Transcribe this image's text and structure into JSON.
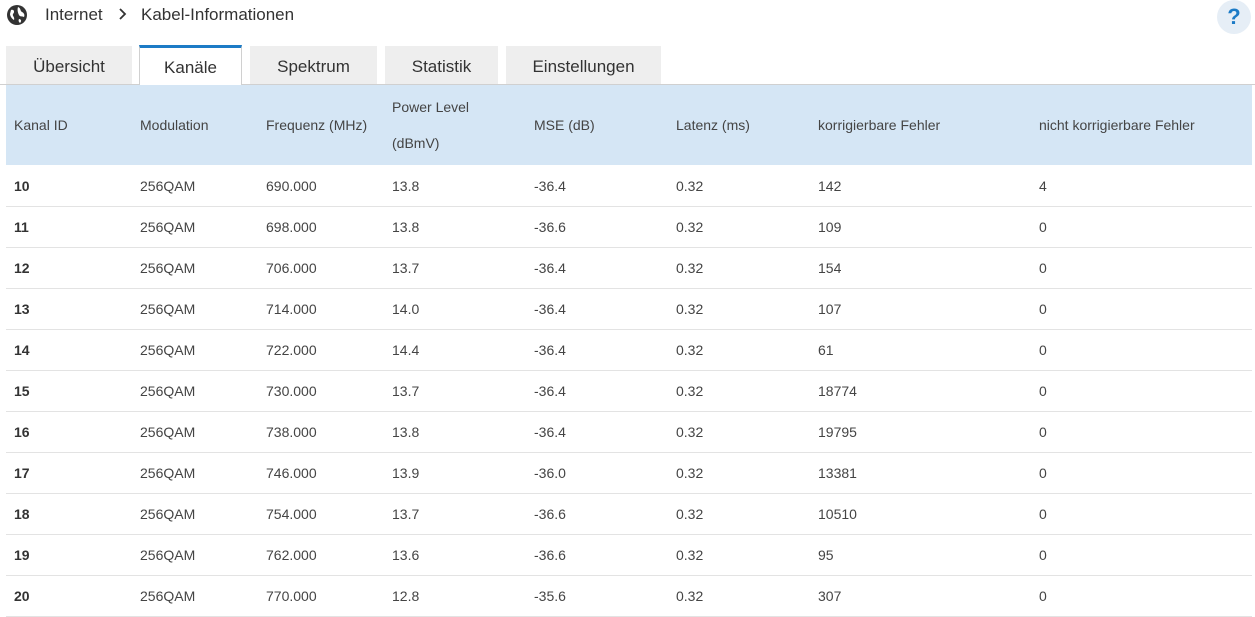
{
  "breadcrumb": {
    "root": "Internet",
    "current": "Kabel-Informationen"
  },
  "help_label": "?",
  "tabs": [
    {
      "label": "Übersicht",
      "active": false
    },
    {
      "label": "Kanäle",
      "active": true
    },
    {
      "label": "Spektrum",
      "active": false
    },
    {
      "label": "Statistik",
      "active": false
    },
    {
      "label": "Einstellungen",
      "active": false
    }
  ],
  "table": {
    "headers": {
      "kanal_id": "Kanal ID",
      "modulation": "Modulation",
      "frequenz": "Frequenz (MHz)",
      "power_level_1": "Power Level",
      "power_level_2": "(dBmV)",
      "mse": "MSE (dB)",
      "latenz": "Latenz (ms)",
      "korr": "korrigierbare Fehler",
      "nicht_korr": "nicht korrigierbare Fehler"
    },
    "rows": [
      {
        "id": "10",
        "mod": "256QAM",
        "freq": "690.000",
        "power": "13.8",
        "mse": "-36.4",
        "lat": "0.32",
        "korr": "142",
        "nkorr": "4"
      },
      {
        "id": "11",
        "mod": "256QAM",
        "freq": "698.000",
        "power": "13.8",
        "mse": "-36.6",
        "lat": "0.32",
        "korr": "109",
        "nkorr": "0"
      },
      {
        "id": "12",
        "mod": "256QAM",
        "freq": "706.000",
        "power": "13.7",
        "mse": "-36.4",
        "lat": "0.32",
        "korr": "154",
        "nkorr": "0"
      },
      {
        "id": "13",
        "mod": "256QAM",
        "freq": "714.000",
        "power": "14.0",
        "mse": "-36.4",
        "lat": "0.32",
        "korr": "107",
        "nkorr": "0"
      },
      {
        "id": "14",
        "mod": "256QAM",
        "freq": "722.000",
        "power": "14.4",
        "mse": "-36.4",
        "lat": "0.32",
        "korr": "61",
        "nkorr": "0"
      },
      {
        "id": "15",
        "mod": "256QAM",
        "freq": "730.000",
        "power": "13.7",
        "mse": "-36.4",
        "lat": "0.32",
        "korr": "18774",
        "nkorr": "0"
      },
      {
        "id": "16",
        "mod": "256QAM",
        "freq": "738.000",
        "power": "13.8",
        "mse": "-36.4",
        "lat": "0.32",
        "korr": "19795",
        "nkorr": "0"
      },
      {
        "id": "17",
        "mod": "256QAM",
        "freq": "746.000",
        "power": "13.9",
        "mse": "-36.0",
        "lat": "0.32",
        "korr": "13381",
        "nkorr": "0"
      },
      {
        "id": "18",
        "mod": "256QAM",
        "freq": "754.000",
        "power": "13.7",
        "mse": "-36.6",
        "lat": "0.32",
        "korr": "10510",
        "nkorr": "0"
      },
      {
        "id": "19",
        "mod": "256QAM",
        "freq": "762.000",
        "power": "13.6",
        "mse": "-36.6",
        "lat": "0.32",
        "korr": "95",
        "nkorr": "0"
      },
      {
        "id": "20",
        "mod": "256QAM",
        "freq": "770.000",
        "power": "12.8",
        "mse": "-35.6",
        "lat": "0.32",
        "korr": "307",
        "nkorr": "0"
      }
    ]
  },
  "icons": {
    "globe": "globe-icon",
    "chevron": "chevron-right-icon",
    "help": "help-icon"
  },
  "colors": {
    "accent": "#1c7bc6",
    "header_bg": "#d5e6f5",
    "tab_bg": "#eeeeee"
  }
}
